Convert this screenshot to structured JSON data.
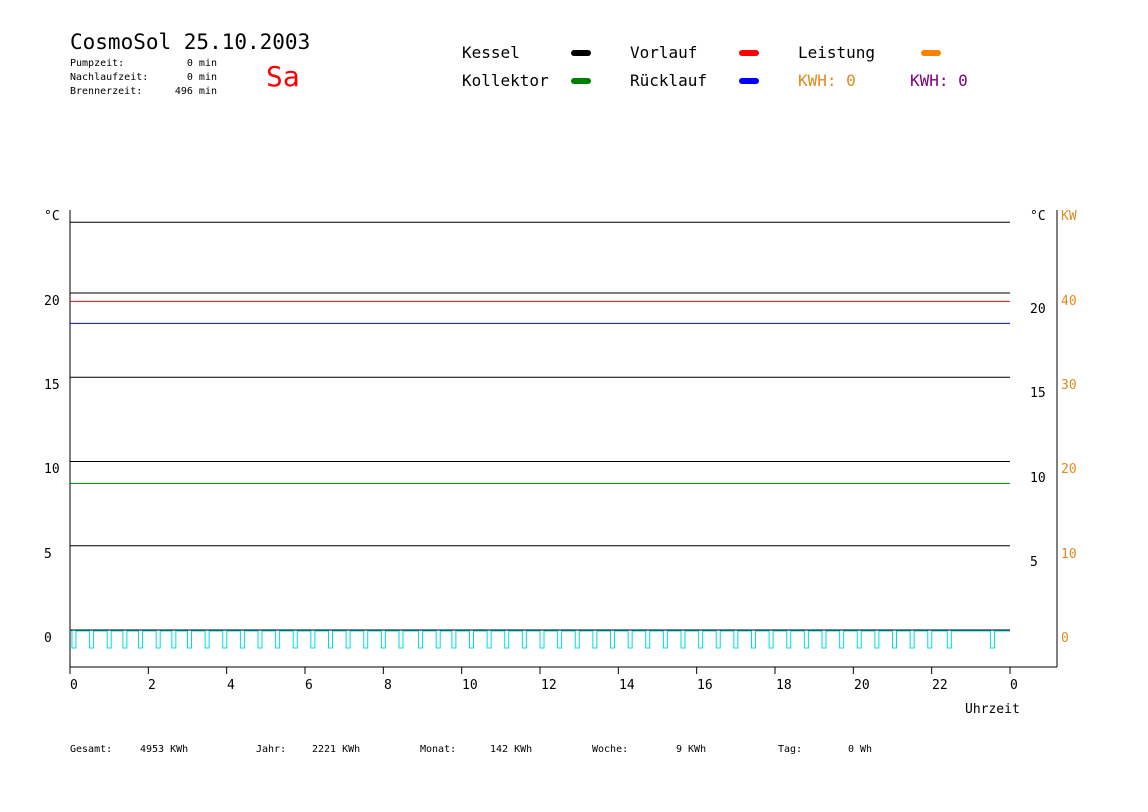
{
  "header": {
    "title": "CosmoSol 25.10.2003",
    "day": "Sa",
    "stats": [
      {
        "label": "Pumpzeit:",
        "value": "0 min"
      },
      {
        "label": "Nachlaufzeit:",
        "value": "0 min"
      },
      {
        "label": "Brennerzeit:",
        "value": "496 min"
      }
    ]
  },
  "legend": {
    "items": [
      {
        "label": "Kessel",
        "color": "#000000"
      },
      {
        "label": "Vorlauf",
        "color": "#ff0000"
      },
      {
        "label": "Leistung",
        "color": "#ff8000"
      },
      {
        "label": "Kollektor",
        "color": "#008000"
      },
      {
        "label": "Rücklauf",
        "color": "#0000ff"
      }
    ],
    "kwh": [
      {
        "label": "KWH: 0",
        "color": "#e08a1e"
      },
      {
        "label": "KWH: 0",
        "color": "#800080"
      }
    ]
  },
  "axes": {
    "left_unit": "°C",
    "right_unit_c": "°C",
    "right_unit_kw": "KW",
    "y_left_ticks": [
      "20",
      "15",
      "10",
      "5",
      "0"
    ],
    "y_right_ticks": [
      "20",
      "15",
      "10",
      "5"
    ],
    "kw_ticks": [
      "40",
      "30",
      "20",
      "10",
      "0"
    ],
    "x_ticks": [
      "0",
      "2",
      "4",
      "6",
      "8",
      "10",
      "12",
      "14",
      "16",
      "18",
      "20",
      "22",
      "0"
    ],
    "xlabel": "Uhrzeit"
  },
  "chart_data": {
    "type": "line",
    "x_unit": "hour",
    "xlim": [
      0,
      24
    ],
    "ylim": [
      0,
      25
    ],
    "y2lim": [
      0,
      50
    ],
    "series": [
      {
        "name": "Kessel",
        "color": "#000000",
        "x": [
          0,
          24
        ],
        "y": [
          24.2,
          24.2
        ]
      },
      {
        "name": "Vorlauf",
        "color": "#ff0000",
        "x": [
          0,
          24
        ],
        "y": [
          19.5,
          19.5
        ]
      },
      {
        "name": "Rücklauf",
        "color": "#0000ff",
        "x": [
          0,
          24
        ],
        "y": [
          18.2,
          18.2
        ]
      },
      {
        "name": "Kollektor",
        "color": "#008000",
        "x": [
          0,
          24
        ],
        "y": [
          8.7,
          8.7
        ]
      }
    ],
    "burner_pulses_hours": [
      0.05,
      0.5,
      0.95,
      1.35,
      1.75,
      2.2,
      2.6,
      3.0,
      3.45,
      3.9,
      4.35,
      4.8,
      5.25,
      5.7,
      6.15,
      6.6,
      7.05,
      7.5,
      7.95,
      8.4,
      8.9,
      9.35,
      9.75,
      10.2,
      10.65,
      11.1,
      11.55,
      12.0,
      12.45,
      12.9,
      13.35,
      13.8,
      14.25,
      14.7,
      15.15,
      15.6,
      16.05,
      16.5,
      16.95,
      17.4,
      17.85,
      18.3,
      18.75,
      19.2,
      19.65,
      20.1,
      20.55,
      21.0,
      21.45,
      21.9,
      22.4,
      23.5
    ],
    "burner_color": "#00dddd"
  },
  "footer": [
    {
      "label": "Gesamt:",
      "value": "4953 KWh"
    },
    {
      "label": "Jahr:",
      "value": "2221 KWh"
    },
    {
      "label": "Monat:",
      "value": "142 KWh"
    },
    {
      "label": "Woche:",
      "value": "9 KWh"
    },
    {
      "label": "Tag:",
      "value": "0 Wh"
    }
  ]
}
